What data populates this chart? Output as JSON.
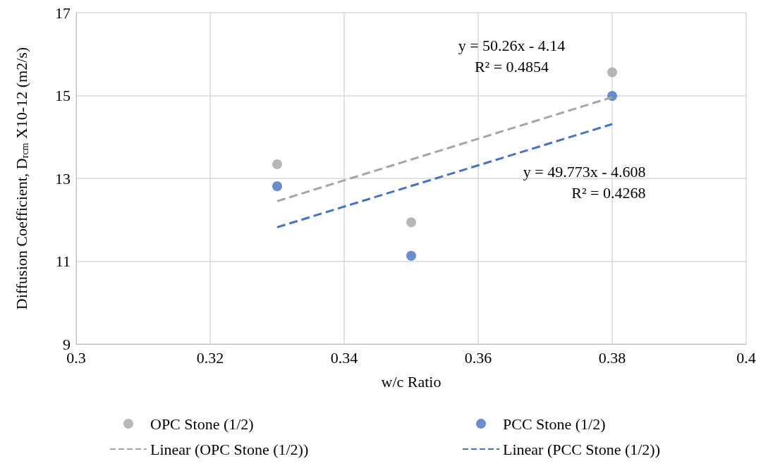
{
  "chart_data": {
    "type": "scatter",
    "xlabel": "w/c Ratio",
    "ylabel": "Diffusion Coefficient, D$_{rcm}$ X10-12 (m2/s)",
    "xlim": [
      0.3,
      0.4
    ],
    "xticks": [
      0.3,
      0.32,
      0.34,
      0.36,
      0.38,
      0.4
    ],
    "ylim": [
      9,
      17
    ],
    "yticks": [
      9,
      11,
      13,
      15,
      17
    ],
    "grid": true,
    "legend": "bottom",
    "series": [
      {
        "name": "OPC Stone (1/2)",
        "marker": "circle",
        "color": "#a5a5a5",
        "x": [
          0.33,
          0.35,
          0.38
        ],
        "values": [
          13.34,
          11.94,
          15.56
        ]
      },
      {
        "name": "PCC Stone (1/2)",
        "marker": "circle",
        "color": "#4472c4",
        "x": [
          0.33,
          0.35,
          0.38
        ],
        "values": [
          12.81,
          11.13,
          14.99
        ]
      },
      {
        "name": "Linear (OPC Stone (1/2))",
        "type": "line",
        "marker": "none",
        "line_style": "dashed",
        "color": "#a5a5a5",
        "x": [
          0.33,
          0.38
        ],
        "values": [
          12.45,
          14.96
        ]
      },
      {
        "name": "Linear (PCC Stone (1/2))",
        "type": "line",
        "marker": "none",
        "line_style": "dashed",
        "color": "#4472c4",
        "x": [
          0.33,
          0.38
        ],
        "values": [
          11.82,
          14.31
        ]
      }
    ],
    "annotations": [
      "y = 50.26x - 4.14\nR² = 0.4854",
      "y = 49.773x - 4.608\nR² = 0.4268"
    ]
  }
}
